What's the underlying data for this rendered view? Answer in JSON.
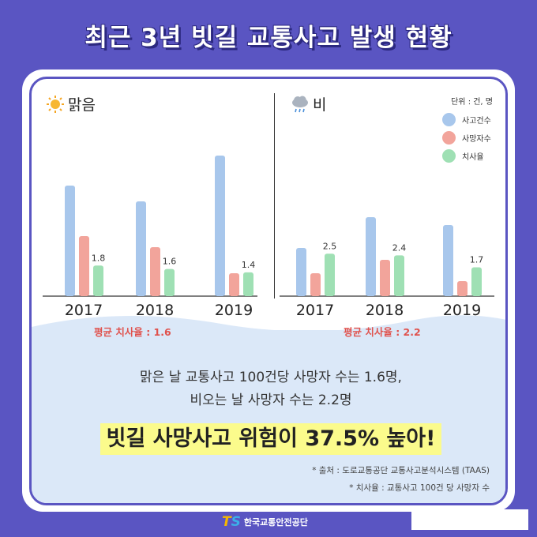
{
  "title": "최근 3년 빗길 교통사고 발생 현황",
  "sunny_label": "맑음",
  "rain_label": "비",
  "unit": "단위 : 건, 명",
  "legend": [
    "사고건수",
    "사망자수",
    "치사율"
  ],
  "colors": {
    "accidents": "#a8c7ec",
    "deaths": "#f2a49b",
    "fatality": "#9fe0b4",
    "accent": "#5a55c2"
  },
  "avg_sunny": "평균 치사율 : 1.6",
  "avg_rain": "평균 치사율 : 2.2",
  "summary_line1": "맑은 날 교통사고 100건당 사망자 수는 1.6명,",
  "summary_line2": "비오는 날 사망자 수는 2.2명",
  "highlight": "빗길 사망사고 위험이 37.5% 높아!",
  "note1": "* 출처 : 도로교통공단 교통사고분석시스템 (TAAS)",
  "note2": "* 치사율 : 교통사고 100건 당 사망자 수",
  "logo_text": "한국교통안전공단",
  "logo_mark": "TS",
  "chart_data": [
    {
      "type": "bar",
      "title": "맑음",
      "categories": [
        "2017",
        "2018",
        "2019"
      ],
      "series": [
        {
          "name": "사고건수",
          "values": [
            140,
            120,
            178
          ]
        },
        {
          "name": "사망자수",
          "values": [
            76,
            62,
            29
          ]
        },
        {
          "name": "치사율",
          "values": [
            1.8,
            1.6,
            1.4
          ]
        }
      ],
      "data_labels": [
        "1.8",
        "1.6",
        "1.4"
      ]
    },
    {
      "type": "bar",
      "title": "비",
      "categories": [
        "2017",
        "2018",
        "2019"
      ],
      "series": [
        {
          "name": "사고건수",
          "values": [
            61,
            100,
            90
          ]
        },
        {
          "name": "사망자수",
          "values": [
            29,
            46,
            19
          ]
        },
        {
          "name": "치사율",
          "values": [
            2.5,
            2.4,
            1.7
          ]
        }
      ],
      "data_labels": [
        "2.5",
        "2.4",
        "1.7"
      ]
    }
  ]
}
